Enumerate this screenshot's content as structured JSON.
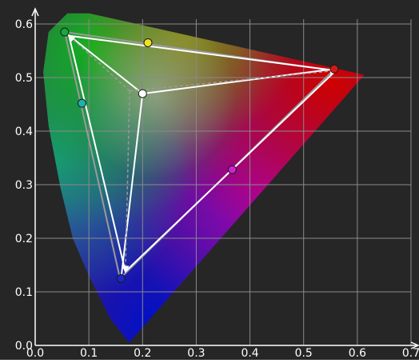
{
  "chart_data": {
    "type": "scatter",
    "title": "",
    "xlabel": "",
    "ylabel": "",
    "xlim": [
      0.0,
      0.7
    ],
    "ylim": [
      0.0,
      0.6
    ],
    "grid": true,
    "x_ticks": [
      {
        "value": 0.0,
        "label": "0.0"
      },
      {
        "value": 0.1,
        "label": "0.1"
      },
      {
        "value": 0.2,
        "label": "0.2"
      },
      {
        "value": 0.3,
        "label": "0.3"
      },
      {
        "value": 0.4,
        "label": "0.4"
      },
      {
        "value": 0.5,
        "label": "0.5"
      },
      {
        "value": 0.6,
        "label": "0.6"
      },
      {
        "value": 0.7,
        "label": "0.7"
      }
    ],
    "y_ticks": [
      {
        "value": 0.0,
        "label": "0.0"
      },
      {
        "value": 0.1,
        "label": "0.1"
      },
      {
        "value": 0.2,
        "label": "0.2"
      },
      {
        "value": 0.3,
        "label": "0.3"
      },
      {
        "value": 0.4,
        "label": "0.4"
      },
      {
        "value": 0.5,
        "label": "0.5"
      },
      {
        "value": 0.6,
        "label": "0.6"
      }
    ],
    "gamut_boundary": [
      [
        0.175,
        0.005
      ],
      [
        0.14,
        0.05
      ],
      [
        0.1,
        0.13
      ],
      [
        0.07,
        0.2
      ],
      [
        0.047,
        0.295
      ],
      [
        0.025,
        0.41
      ],
      [
        0.015,
        0.51
      ],
      [
        0.025,
        0.585
      ],
      [
        0.06,
        0.62
      ],
      [
        0.1,
        0.62
      ],
      [
        0.613,
        0.505
      ]
    ],
    "target_gamut": [
      [
        0.56,
        0.513
      ],
      [
        0.063,
        0.578
      ],
      [
        0.168,
        0.138
      ],
      [
        0.56,
        0.513
      ]
    ],
    "measured_gamut": [
      [
        0.555,
        0.513
      ],
      [
        0.055,
        0.585
      ],
      [
        0.158,
        0.125
      ],
      [
        0.555,
        0.513
      ]
    ],
    "white_point": {
      "target": [
        0.176,
        0.475
      ],
      "measured": [
        0.2,
        0.47
      ]
    },
    "points": [
      {
        "name": "red",
        "x": 0.557,
        "y": 0.516,
        "color": "#d41818"
      },
      {
        "name": "green",
        "x": 0.055,
        "y": 0.585,
        "color": "#18a83c"
      },
      {
        "name": "blue",
        "x": 0.16,
        "y": 0.125,
        "color": "#1a28c8"
      },
      {
        "name": "white",
        "x": 0.2,
        "y": 0.47,
        "color": "#ffffff"
      },
      {
        "name": "yellow",
        "x": 0.21,
        "y": 0.565,
        "color": "#f0e020"
      },
      {
        "name": "cyan",
        "x": 0.087,
        "y": 0.452,
        "color": "#20b0b0"
      },
      {
        "name": "magenta",
        "x": 0.367,
        "y": 0.328,
        "color": "#d020d0"
      }
    ]
  },
  "colors": {
    "plot_background": "#262626",
    "grid": "#8a8a8a",
    "axis": "#ffffff",
    "tick_label": "#ffffff",
    "target_line": "#ffffff",
    "measured_line": "#9a9a9a"
  }
}
